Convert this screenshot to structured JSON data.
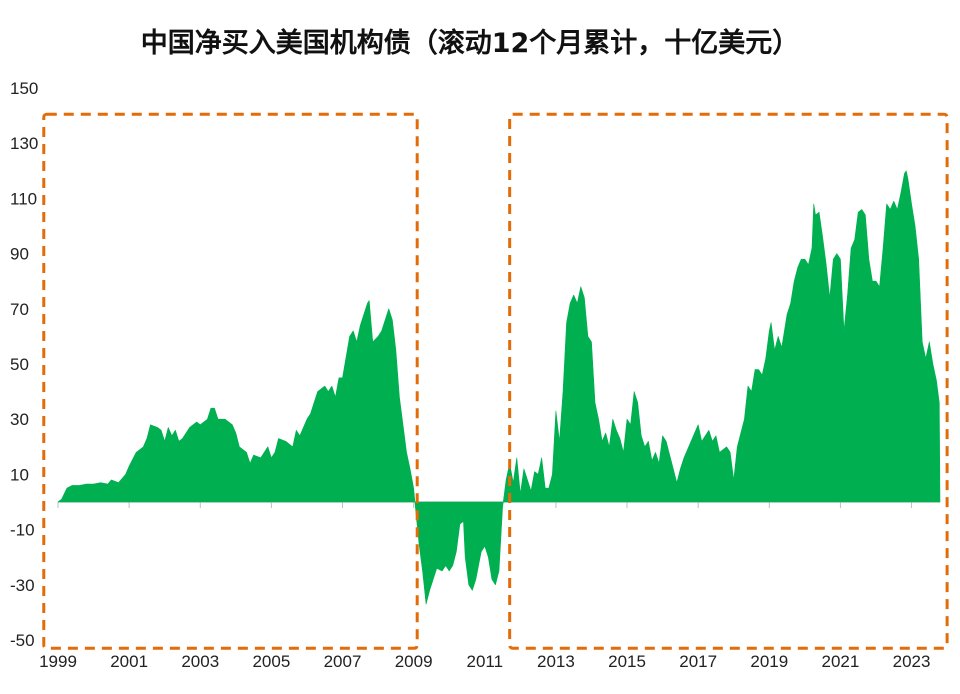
{
  "chart_data": {
    "type": "area",
    "title": "中国净买入美国机构债（滚动12个月累计，十亿美元）",
    "xlabel": "",
    "ylabel": "",
    "ylim": [
      -50,
      150
    ],
    "xlim": [
      1999,
      2023.8
    ],
    "y_ticks": [
      150,
      130,
      110,
      90,
      70,
      50,
      30,
      10,
      -10,
      -30,
      -50
    ],
    "x_ticks": [
      1999,
      2001,
      2003,
      2005,
      2007,
      2009,
      2011,
      2013,
      2015,
      2017,
      2019,
      2021,
      2023
    ],
    "x_tick_labels": [
      "1999",
      "2001",
      "2003",
      "2005",
      "2007",
      "2009",
      "2011",
      "2013",
      "2015",
      "2017",
      "2019",
      "2021",
      "2023"
    ],
    "grid": false,
    "legend": "none",
    "series": [
      {
        "color": "#00b050",
        "points": [
          [
            1999.0,
            0
          ],
          [
            1999.1,
            1
          ],
          [
            1999.25,
            5
          ],
          [
            1999.4,
            6
          ],
          [
            1999.6,
            6
          ],
          [
            1999.8,
            6.5
          ],
          [
            2000.0,
            6.5
          ],
          [
            2000.2,
            7
          ],
          [
            2000.4,
            6.5
          ],
          [
            2000.5,
            8
          ],
          [
            2000.7,
            7
          ],
          [
            2000.9,
            10
          ],
          [
            2001.0,
            13
          ],
          [
            2001.2,
            18
          ],
          [
            2001.4,
            20
          ],
          [
            2001.5,
            23
          ],
          [
            2001.6,
            28
          ],
          [
            2001.8,
            27
          ],
          [
            2001.9,
            26
          ],
          [
            2002.0,
            22
          ],
          [
            2002.1,
            27
          ],
          [
            2002.2,
            24
          ],
          [
            2002.3,
            26
          ],
          [
            2002.4,
            22
          ],
          [
            2002.5,
            23
          ],
          [
            2002.7,
            27
          ],
          [
            2002.9,
            29
          ],
          [
            2003.0,
            28
          ],
          [
            2003.2,
            30
          ],
          [
            2003.3,
            34
          ],
          [
            2003.4,
            34
          ],
          [
            2003.5,
            30
          ],
          [
            2003.7,
            30
          ],
          [
            2003.9,
            28
          ],
          [
            2004.0,
            25
          ],
          [
            2004.1,
            20
          ],
          [
            2004.3,
            18
          ],
          [
            2004.4,
            14
          ],
          [
            2004.5,
            17
          ],
          [
            2004.7,
            16
          ],
          [
            2004.8,
            18
          ],
          [
            2004.9,
            20
          ],
          [
            2005.0,
            16
          ],
          [
            2005.1,
            18
          ],
          [
            2005.2,
            23
          ],
          [
            2005.4,
            22
          ],
          [
            2005.6,
            20
          ],
          [
            2005.7,
            26
          ],
          [
            2005.8,
            24
          ],
          [
            2006.0,
            30
          ],
          [
            2006.1,
            32
          ],
          [
            2006.3,
            40
          ],
          [
            2006.5,
            42
          ],
          [
            2006.6,
            40
          ],
          [
            2006.7,
            42
          ],
          [
            2006.8,
            38
          ],
          [
            2006.9,
            45
          ],
          [
            2007.0,
            45
          ],
          [
            2007.2,
            60
          ],
          [
            2007.3,
            62
          ],
          [
            2007.4,
            58
          ],
          [
            2007.5,
            64
          ],
          [
            2007.7,
            72
          ],
          [
            2007.75,
            73
          ],
          [
            2007.85,
            58
          ],
          [
            2008.0,
            60
          ],
          [
            2008.1,
            62
          ],
          [
            2008.3,
            70
          ],
          [
            2008.4,
            66
          ],
          [
            2008.5,
            55
          ],
          [
            2008.6,
            38
          ],
          [
            2008.7,
            28
          ],
          [
            2008.8,
            18
          ],
          [
            2008.9,
            12
          ],
          [
            2009.0,
            5
          ],
          [
            2009.05,
            -2
          ],
          [
            2009.15,
            -15
          ],
          [
            2009.25,
            -25
          ],
          [
            2009.35,
            -37
          ],
          [
            2009.45,
            -32
          ],
          [
            2009.55,
            -28
          ],
          [
            2009.65,
            -24
          ],
          [
            2009.8,
            -25
          ],
          [
            2009.9,
            -23
          ],
          [
            2010.0,
            -25
          ],
          [
            2010.1,
            -23
          ],
          [
            2010.2,
            -18
          ],
          [
            2010.3,
            -8
          ],
          [
            2010.4,
            -7
          ],
          [
            2010.45,
            -20
          ],
          [
            2010.55,
            -30
          ],
          [
            2010.65,
            -32
          ],
          [
            2010.75,
            -28
          ],
          [
            2010.9,
            -18
          ],
          [
            2011.0,
            -16
          ],
          [
            2011.1,
            -20
          ],
          [
            2011.2,
            -28
          ],
          [
            2011.3,
            -30
          ],
          [
            2011.4,
            -25
          ],
          [
            2011.5,
            -2
          ],
          [
            2011.6,
            8
          ],
          [
            2011.7,
            14
          ],
          [
            2011.8,
            7
          ],
          [
            2011.9,
            16
          ],
          [
            2012.0,
            3
          ],
          [
            2012.1,
            12
          ],
          [
            2012.3,
            4
          ],
          [
            2012.4,
            11
          ],
          [
            2012.5,
            10
          ],
          [
            2012.6,
            16
          ],
          [
            2012.7,
            5
          ],
          [
            2012.8,
            5
          ],
          [
            2012.9,
            10
          ],
          [
            2013.0,
            33
          ],
          [
            2013.1,
            22
          ],
          [
            2013.2,
            40
          ],
          [
            2013.3,
            65
          ],
          [
            2013.4,
            72
          ],
          [
            2013.5,
            75
          ],
          [
            2013.6,
            72
          ],
          [
            2013.7,
            78
          ],
          [
            2013.8,
            74
          ],
          [
            2013.9,
            60
          ],
          [
            2014.0,
            58
          ],
          [
            2014.1,
            36
          ],
          [
            2014.2,
            30
          ],
          [
            2014.3,
            22
          ],
          [
            2014.4,
            25
          ],
          [
            2014.5,
            20
          ],
          [
            2014.6,
            30
          ],
          [
            2014.7,
            26
          ],
          [
            2014.8,
            23
          ],
          [
            2014.9,
            18
          ],
          [
            2015.0,
            30
          ],
          [
            2015.1,
            28
          ],
          [
            2015.2,
            40
          ],
          [
            2015.3,
            36
          ],
          [
            2015.4,
            24
          ],
          [
            2015.5,
            20
          ],
          [
            2015.6,
            22
          ],
          [
            2015.7,
            15
          ],
          [
            2015.8,
            18
          ],
          [
            2015.9,
            14
          ],
          [
            2016.0,
            24
          ],
          [
            2016.1,
            22
          ],
          [
            2016.2,
            17
          ],
          [
            2016.3,
            12
          ],
          [
            2016.4,
            7
          ],
          [
            2016.5,
            12
          ],
          [
            2016.6,
            16
          ],
          [
            2016.8,
            22
          ],
          [
            2016.9,
            25
          ],
          [
            2017.0,
            28
          ],
          [
            2017.1,
            22
          ],
          [
            2017.3,
            26
          ],
          [
            2017.4,
            22
          ],
          [
            2017.5,
            24
          ],
          [
            2017.6,
            18
          ],
          [
            2017.8,
            20
          ],
          [
            2017.9,
            18
          ],
          [
            2018.0,
            8
          ],
          [
            2018.1,
            20
          ],
          [
            2018.2,
            25
          ],
          [
            2018.3,
            30
          ],
          [
            2018.4,
            42
          ],
          [
            2018.5,
            40
          ],
          [
            2018.6,
            48
          ],
          [
            2018.7,
            48
          ],
          [
            2018.8,
            46
          ],
          [
            2018.9,
            52
          ],
          [
            2019.0,
            62
          ],
          [
            2019.05,
            65
          ],
          [
            2019.15,
            55
          ],
          [
            2019.25,
            60
          ],
          [
            2019.35,
            56
          ],
          [
            2019.5,
            68
          ],
          [
            2019.6,
            72
          ],
          [
            2019.7,
            80
          ],
          [
            2019.8,
            85
          ],
          [
            2019.9,
            88
          ],
          [
            2020.0,
            88
          ],
          [
            2020.1,
            86
          ],
          [
            2020.2,
            92
          ],
          [
            2020.25,
            108
          ],
          [
            2020.3,
            104
          ],
          [
            2020.4,
            105
          ],
          [
            2020.5,
            96
          ],
          [
            2020.6,
            86
          ],
          [
            2020.7,
            74
          ],
          [
            2020.8,
            88
          ],
          [
            2020.9,
            90
          ],
          [
            2021.0,
            88
          ],
          [
            2021.1,
            62
          ],
          [
            2021.2,
            75
          ],
          [
            2021.3,
            92
          ],
          [
            2021.4,
            95
          ],
          [
            2021.5,
            105
          ],
          [
            2021.6,
            106
          ],
          [
            2021.7,
            104
          ],
          [
            2021.8,
            88
          ],
          [
            2021.9,
            80
          ],
          [
            2022.0,
            80
          ],
          [
            2022.1,
            78
          ],
          [
            2022.2,
            92
          ],
          [
            2022.3,
            108
          ],
          [
            2022.4,
            106
          ],
          [
            2022.5,
            109
          ],
          [
            2022.6,
            106
          ],
          [
            2022.7,
            112
          ],
          [
            2022.8,
            119
          ],
          [
            2022.85,
            120
          ],
          [
            2022.9,
            117
          ],
          [
            2023.0,
            108
          ],
          [
            2023.1,
            100
          ],
          [
            2023.2,
            88
          ],
          [
            2023.3,
            58
          ],
          [
            2023.4,
            52
          ],
          [
            2023.5,
            58
          ],
          [
            2023.6,
            50
          ],
          [
            2023.7,
            44
          ],
          [
            2023.78,
            36
          ],
          [
            2023.8,
            0
          ]
        ]
      }
    ],
    "annotations": [
      {
        "type": "dashed-box",
        "x_range": [
          1998.6,
          2009.1
        ],
        "y_range": [
          -53,
          140.5
        ],
        "color": "#e36c09"
      },
      {
        "type": "dashed-box",
        "x_range": [
          2011.7,
          2024.0
        ],
        "y_range": [
          -53,
          140.5
        ],
        "color": "#e36c09"
      }
    ]
  }
}
